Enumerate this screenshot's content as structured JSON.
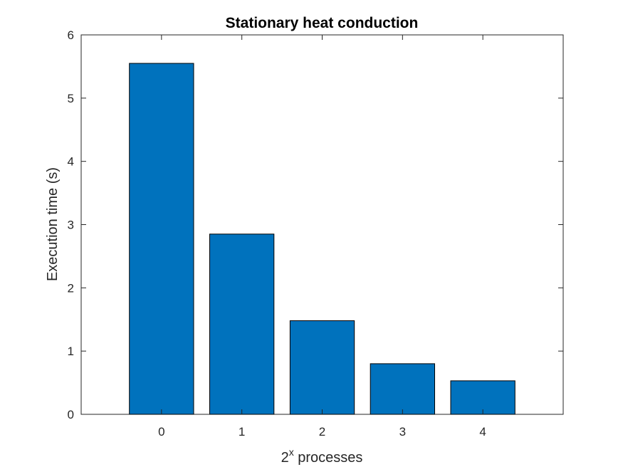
{
  "chart_data": {
    "type": "bar",
    "title": "Stationary heat conduction",
    "xlabel_base": "2",
    "xlabel_sup": "x",
    "xlabel_rest": " processes",
    "ylabel": "Execution time (s)",
    "categories": [
      "0",
      "1",
      "2",
      "3",
      "4"
    ],
    "values": [
      5.55,
      2.85,
      1.48,
      0.8,
      0.53
    ],
    "xlim": [
      -1,
      5
    ],
    "ylim": [
      0,
      6
    ],
    "yticks": [
      0,
      1,
      2,
      3,
      4,
      5,
      6
    ],
    "bar_color": "#0072BD",
    "grid": false,
    "box": true
  }
}
